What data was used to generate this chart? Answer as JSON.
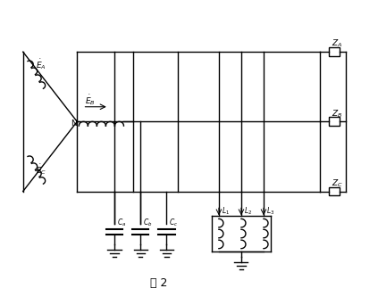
{
  "title": "图 2",
  "bg_color": "#ffffff",
  "line_color": "#000000",
  "fig_width": 4.23,
  "fig_height": 3.42,
  "dpi": 100
}
